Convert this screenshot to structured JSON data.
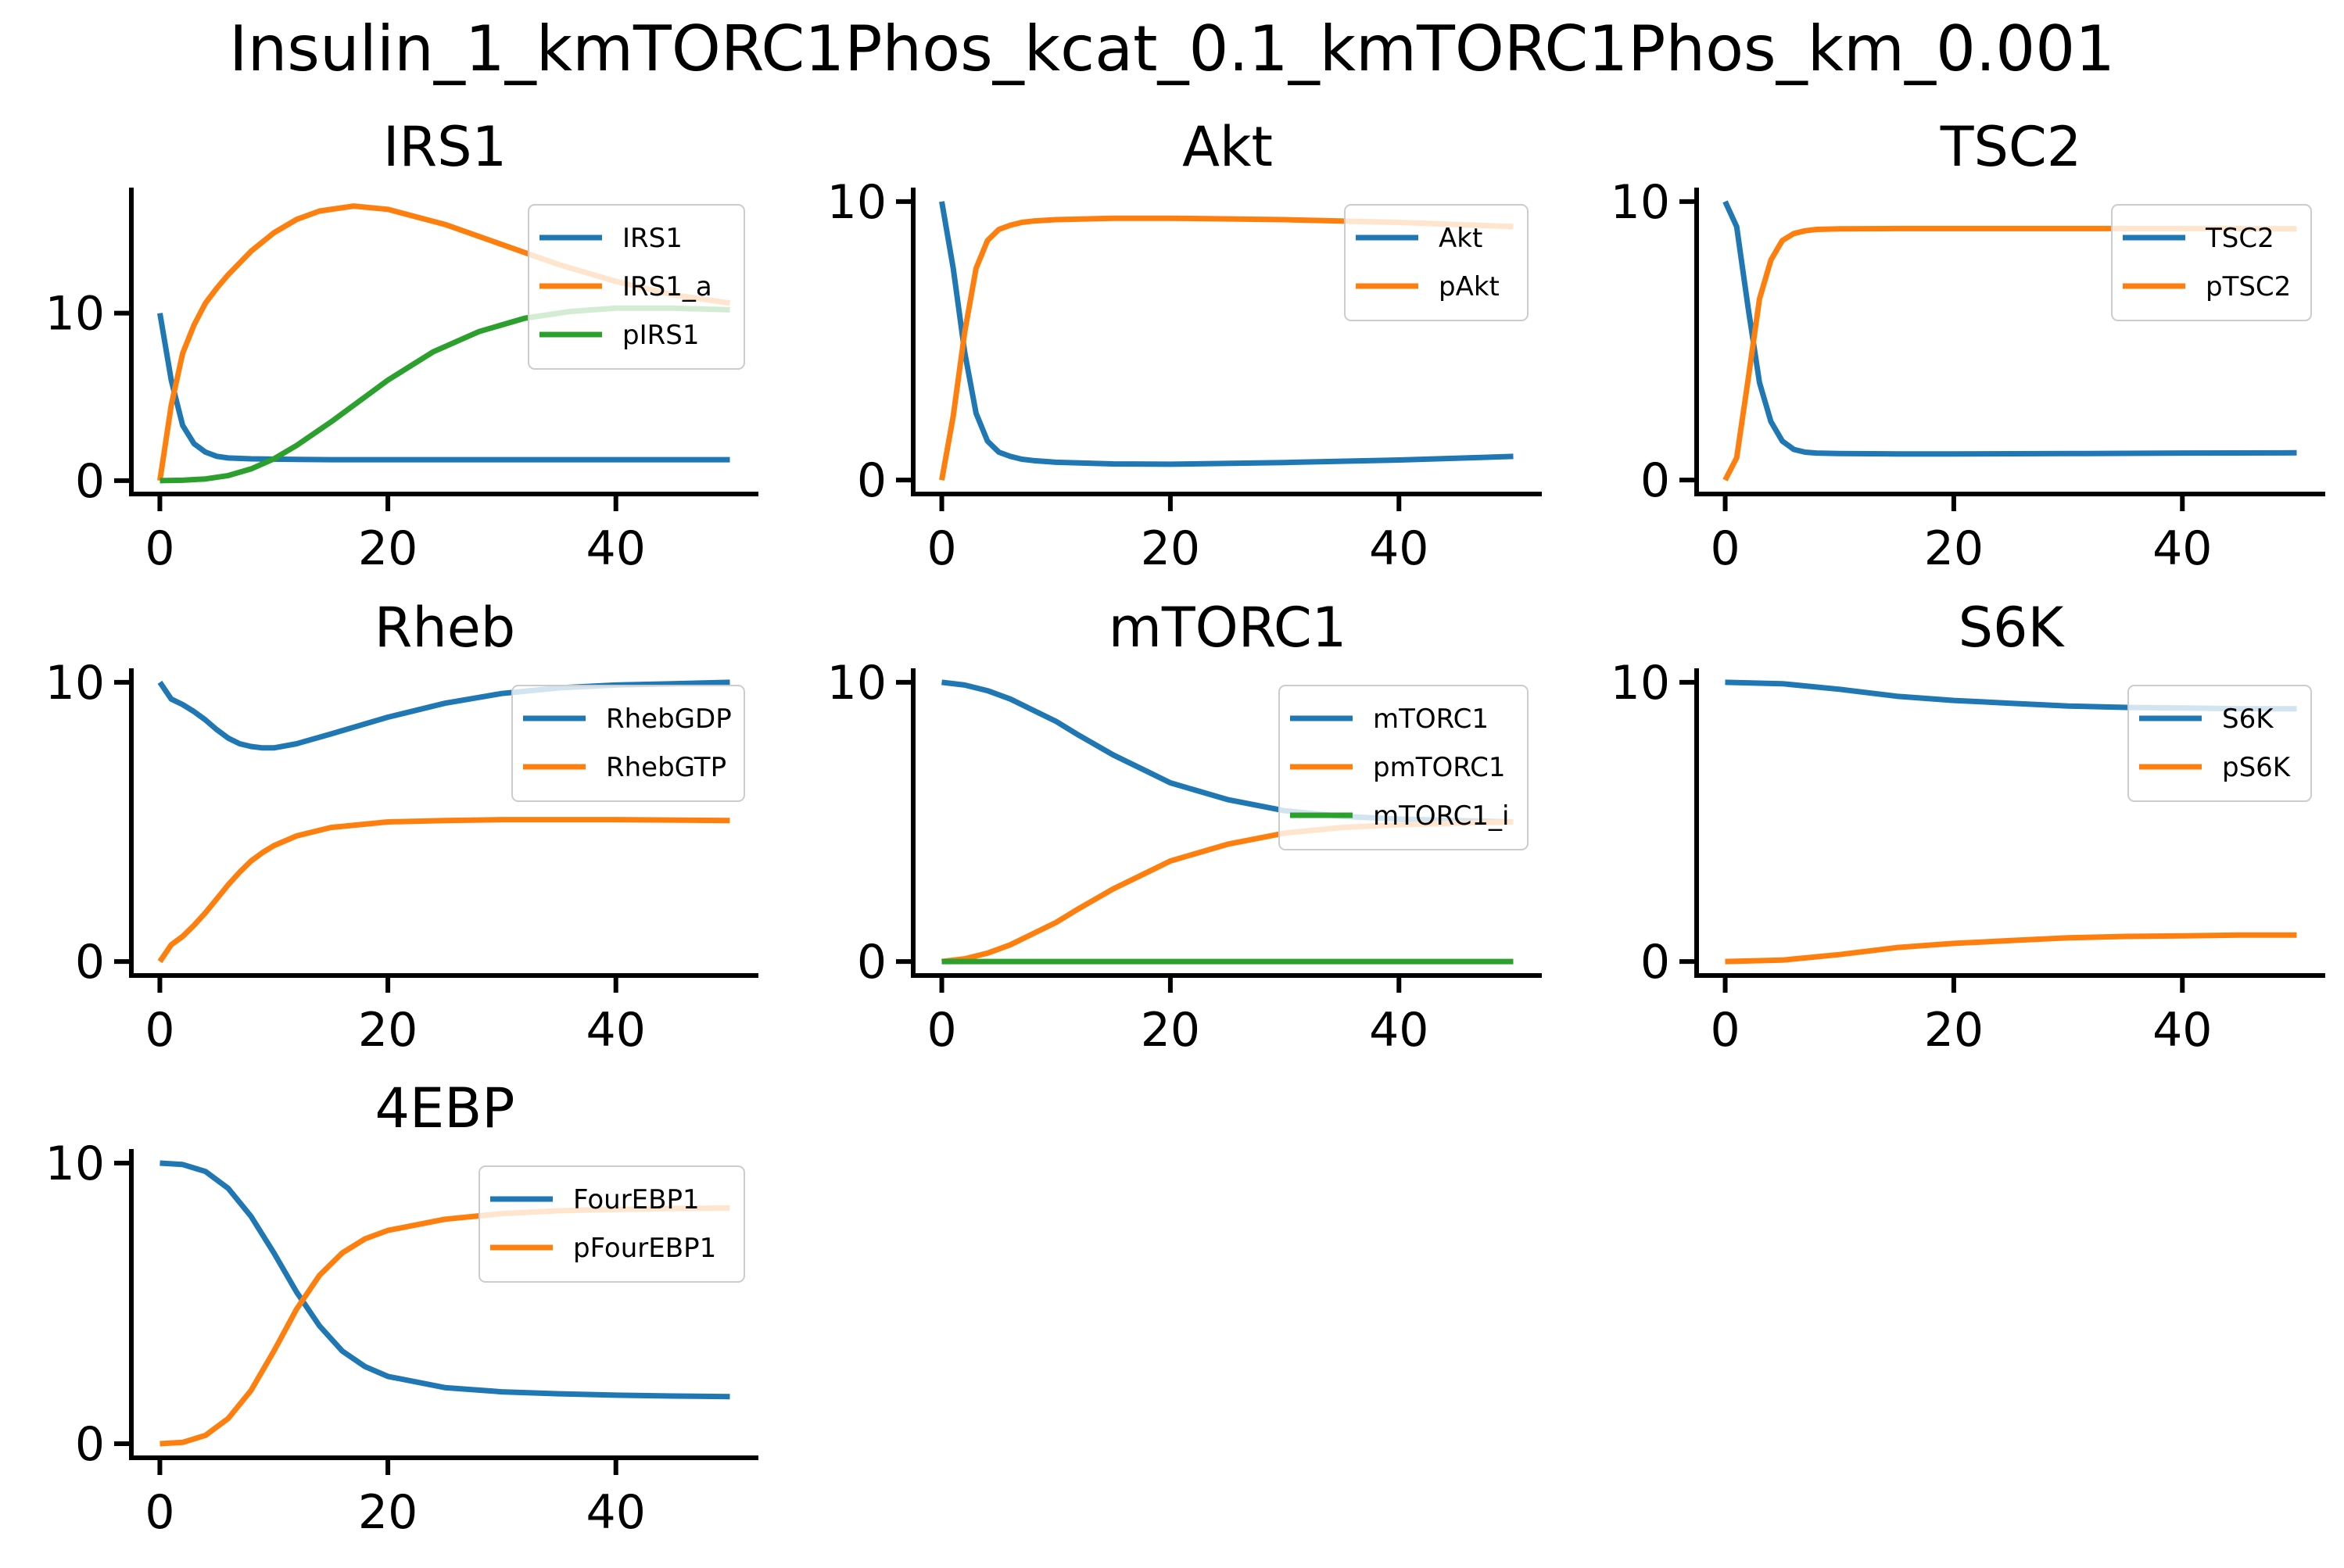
{
  "figure": {
    "title": "Insulin_1_kmTORC1Phos_kcat_0.1_kmTORC1Phos_km_0.001"
  },
  "colors": {
    "blue": "#1f77b4",
    "orange": "#ff7f0e",
    "green": "#2ca02c"
  },
  "chart_data": [
    {
      "type": "line",
      "title": "IRS1",
      "xlim": [
        -2.5,
        52.5
      ],
      "ylim": [
        -0.8,
        17.5
      ],
      "xticks": [
        0,
        20,
        40
      ],
      "yticks": [
        0,
        10
      ],
      "legend": "top-right",
      "series": [
        {
          "name": "IRS1",
          "color": "#1f77b4",
          "x": [
            0,
            1,
            2,
            3,
            4,
            5,
            6,
            8,
            10,
            15,
            20,
            30,
            40,
            50
          ],
          "y": [
            10,
            6,
            3.3,
            2.2,
            1.7,
            1.45,
            1.35,
            1.3,
            1.28,
            1.25,
            1.25,
            1.25,
            1.25,
            1.25
          ]
        },
        {
          "name": "IRS1_a",
          "color": "#ff7f0e",
          "x": [
            0,
            1,
            2,
            3,
            4,
            5,
            6,
            8,
            10,
            12,
            14,
            17,
            20,
            25,
            30,
            35,
            40,
            45,
            50
          ],
          "y": [
            0,
            4.5,
            7.6,
            9.3,
            10.6,
            11.5,
            12.3,
            13.7,
            14.8,
            15.6,
            16.1,
            16.4,
            16.2,
            15.3,
            14.1,
            12.9,
            11.9,
            11.1,
            10.6
          ]
        },
        {
          "name": "pIRS1",
          "color": "#2ca02c",
          "x": [
            0,
            2,
            4,
            6,
            8,
            10,
            12,
            15,
            18,
            20,
            24,
            28,
            32,
            36,
            40,
            45,
            50
          ],
          "y": [
            0,
            0.02,
            0.1,
            0.3,
            0.7,
            1.3,
            2.1,
            3.5,
            5.0,
            6.0,
            7.7,
            8.9,
            9.7,
            10.1,
            10.3,
            10.3,
            10.2
          ]
        }
      ]
    },
    {
      "type": "line",
      "title": "Akt",
      "xlim": [
        -2.5,
        52.5
      ],
      "ylim": [
        -0.5,
        10.5
      ],
      "xticks": [
        0,
        20,
        40
      ],
      "yticks": [
        0,
        10
      ],
      "legend": "top-right",
      "series": [
        {
          "name": "Akt",
          "color": "#1f77b4",
          "x": [
            0,
            1,
            2,
            3,
            4,
            5,
            6,
            7,
            8,
            10,
            15,
            20,
            30,
            40,
            50
          ],
          "y": [
            10,
            7.6,
            4.6,
            2.4,
            1.4,
            1.0,
            0.85,
            0.75,
            0.7,
            0.64,
            0.58,
            0.57,
            0.63,
            0.72,
            0.85
          ]
        },
        {
          "name": "pAkt",
          "color": "#ff7f0e",
          "x": [
            0,
            1,
            2,
            3,
            4,
            5,
            6,
            7,
            8,
            10,
            15,
            20,
            30,
            40,
            50
          ],
          "y": [
            0,
            2.3,
            5.3,
            7.6,
            8.6,
            9.0,
            9.15,
            9.25,
            9.3,
            9.35,
            9.4,
            9.4,
            9.35,
            9.25,
            9.1
          ]
        }
      ]
    },
    {
      "type": "line",
      "title": "TSC2",
      "xlim": [
        -2.5,
        52.5
      ],
      "ylim": [
        -0.5,
        10.5
      ],
      "xticks": [
        0,
        20,
        40
      ],
      "yticks": [
        0,
        10
      ],
      "legend": "top-right",
      "series": [
        {
          "name": "TSC2",
          "color": "#1f77b4",
          "x": [
            0,
            1,
            2,
            3,
            4,
            5,
            6,
            7,
            8,
            10,
            15,
            20,
            30,
            40,
            50
          ],
          "y": [
            10,
            9.1,
            6.2,
            3.5,
            2.1,
            1.4,
            1.1,
            1.0,
            0.97,
            0.95,
            0.94,
            0.94,
            0.95,
            0.97,
            0.98
          ]
        },
        {
          "name": "pTSC2",
          "color": "#ff7f0e",
          "x": [
            0,
            1,
            2,
            3,
            4,
            5,
            6,
            7,
            8,
            10,
            15,
            20,
            30,
            40,
            50
          ],
          "y": [
            0,
            0.8,
            3.6,
            6.5,
            7.9,
            8.6,
            8.85,
            8.95,
            9.0,
            9.02,
            9.03,
            9.03,
            9.03,
            9.03,
            9.02
          ]
        }
      ]
    },
    {
      "type": "line",
      "title": "Rheb",
      "xlim": [
        -2.5,
        52.5
      ],
      "ylim": [
        -0.5,
        10.5
      ],
      "xticks": [
        0,
        20,
        40
      ],
      "yticks": [
        0,
        10
      ],
      "legend": "top-right",
      "series": [
        {
          "name": "RhebGDP",
          "color": "#1f77b4",
          "x": [
            0,
            1,
            2,
            3,
            4,
            5,
            6,
            7,
            8,
            9,
            10,
            12,
            15,
            20,
            25,
            30,
            35,
            40,
            45,
            50
          ],
          "y": [
            10,
            9.4,
            9.2,
            8.95,
            8.65,
            8.3,
            8.0,
            7.8,
            7.7,
            7.65,
            7.65,
            7.8,
            8.15,
            8.75,
            9.25,
            9.6,
            9.8,
            9.9,
            9.95,
            10.0
          ]
        },
        {
          "name": "RhebGTP",
          "color": "#ff7f0e",
          "x": [
            0,
            1,
            2,
            3,
            4,
            5,
            6,
            7,
            8,
            9,
            10,
            12,
            15,
            20,
            25,
            30,
            40,
            50
          ],
          "y": [
            0,
            0.6,
            0.9,
            1.3,
            1.75,
            2.25,
            2.75,
            3.2,
            3.6,
            3.9,
            4.15,
            4.5,
            4.8,
            5.0,
            5.05,
            5.08,
            5.08,
            5.05
          ]
        }
      ]
    },
    {
      "type": "line",
      "title": "mTORC1",
      "xlim": [
        -2.5,
        52.5
      ],
      "ylim": [
        -0.5,
        10.5
      ],
      "xticks": [
        0,
        20,
        40
      ],
      "yticks": [
        0,
        10
      ],
      "legend": "top-right",
      "series": [
        {
          "name": "mTORC1",
          "color": "#1f77b4",
          "x": [
            0,
            2,
            4,
            6,
            8,
            10,
            12,
            15,
            18,
            20,
            25,
            30,
            35,
            40,
            45,
            50
          ],
          "y": [
            10,
            9.9,
            9.7,
            9.4,
            9.0,
            8.6,
            8.1,
            7.4,
            6.8,
            6.4,
            5.8,
            5.4,
            5.2,
            5.1,
            5.05,
            5.0
          ]
        },
        {
          "name": "pmTORC1",
          "color": "#ff7f0e",
          "x": [
            0,
            2,
            4,
            6,
            8,
            10,
            12,
            15,
            18,
            20,
            25,
            30,
            35,
            40,
            45,
            50
          ],
          "y": [
            0,
            0.1,
            0.3,
            0.6,
            1.0,
            1.4,
            1.9,
            2.6,
            3.2,
            3.6,
            4.2,
            4.6,
            4.8,
            4.9,
            4.95,
            5.0
          ]
        },
        {
          "name": "mTORC1_i",
          "color": "#2ca02c",
          "x": [
            0,
            50
          ],
          "y": [
            0,
            0
          ]
        }
      ]
    },
    {
      "type": "line",
      "title": "S6K",
      "xlim": [
        -2.5,
        52.5
      ],
      "ylim": [
        -0.5,
        10.5
      ],
      "xticks": [
        0,
        20,
        40
      ],
      "yticks": [
        0,
        10
      ],
      "legend": "top-right",
      "series": [
        {
          "name": "S6K",
          "color": "#1f77b4",
          "x": [
            0,
            5,
            10,
            15,
            20,
            25,
            30,
            35,
            40,
            45,
            50
          ],
          "y": [
            10,
            9.95,
            9.75,
            9.5,
            9.35,
            9.25,
            9.15,
            9.1,
            9.08,
            9.05,
            9.05
          ]
        },
        {
          "name": "pS6K",
          "color": "#ff7f0e",
          "x": [
            0,
            5,
            10,
            15,
            20,
            25,
            30,
            35,
            40,
            45,
            50
          ],
          "y": [
            0,
            0.05,
            0.25,
            0.5,
            0.65,
            0.75,
            0.85,
            0.9,
            0.92,
            0.95,
            0.95
          ]
        }
      ]
    },
    {
      "type": "line",
      "title": "4EBP",
      "xlim": [
        -2.5,
        52.5
      ],
      "ylim": [
        -0.5,
        10.5
      ],
      "xticks": [
        0,
        20,
        40
      ],
      "yticks": [
        0,
        10
      ],
      "legend": "top-right",
      "series": [
        {
          "name": "FourEBP1",
          "color": "#1f77b4",
          "x": [
            0,
            2,
            4,
            6,
            8,
            10,
            12,
            14,
            16,
            18,
            20,
            25,
            30,
            35,
            40,
            45,
            50
          ],
          "y": [
            10,
            9.95,
            9.7,
            9.1,
            8.1,
            6.8,
            5.4,
            4.2,
            3.3,
            2.75,
            2.4,
            2.0,
            1.85,
            1.78,
            1.73,
            1.7,
            1.68
          ]
        },
        {
          "name": "pFourEBP1",
          "color": "#ff7f0e",
          "x": [
            0,
            2,
            4,
            6,
            8,
            10,
            12,
            14,
            16,
            18,
            20,
            25,
            30,
            35,
            40,
            45,
            50
          ],
          "y": [
            0,
            0.05,
            0.3,
            0.9,
            1.9,
            3.3,
            4.8,
            6.0,
            6.8,
            7.3,
            7.6,
            8.0,
            8.2,
            8.3,
            8.35,
            8.38,
            8.4
          ]
        }
      ]
    }
  ]
}
